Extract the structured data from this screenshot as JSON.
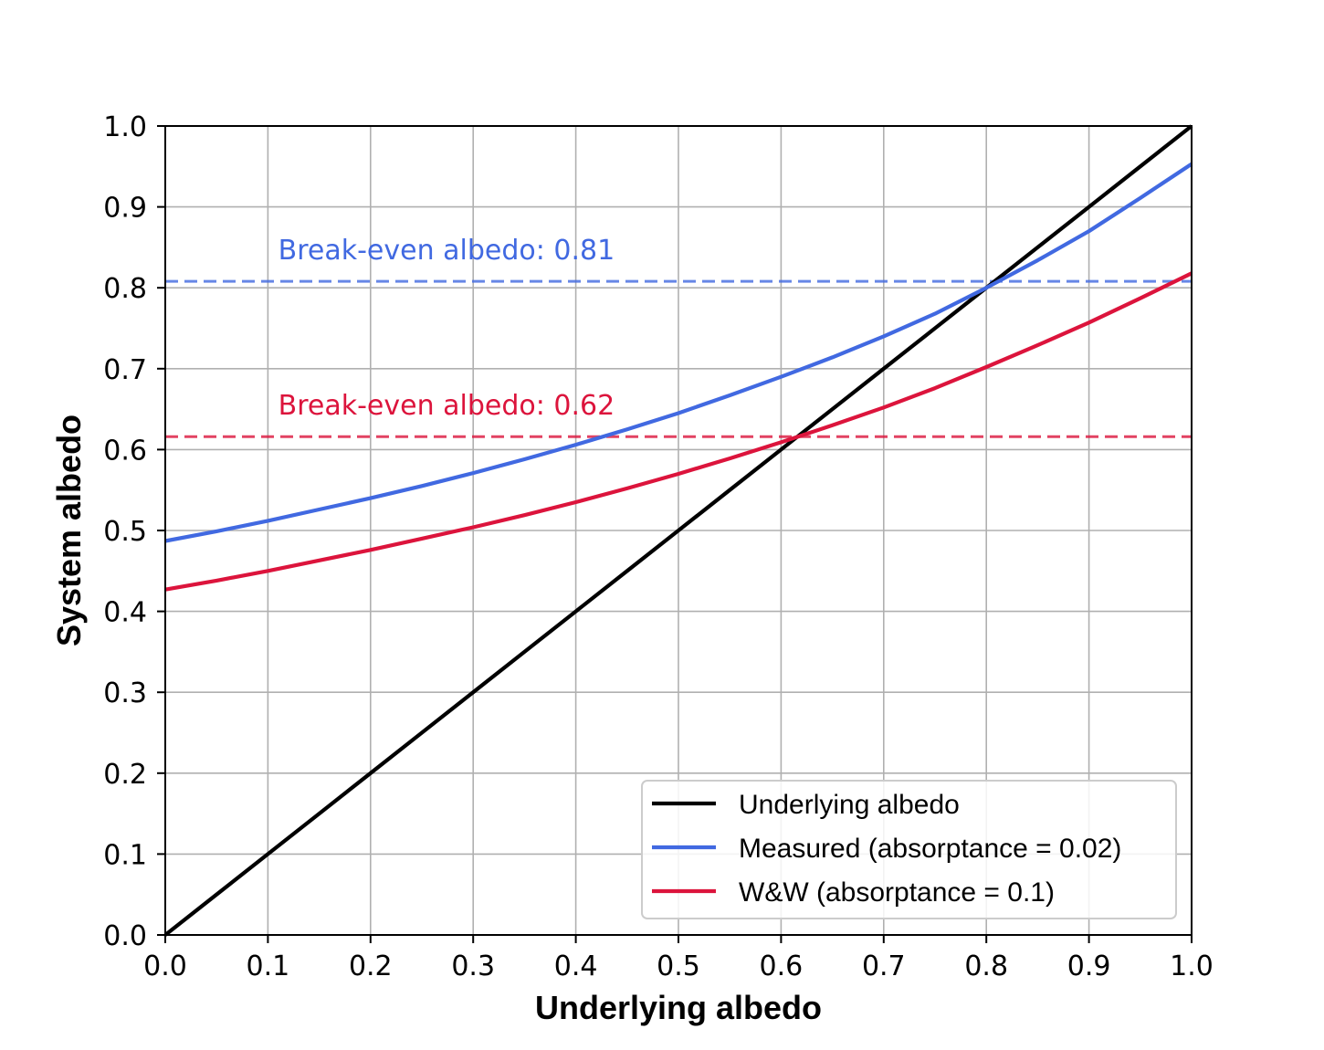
{
  "chart_data": {
    "type": "line",
    "xlabel": "Underlying albedo",
    "ylabel": "System albedo",
    "xlim": [
      0,
      1
    ],
    "ylim": [
      0,
      1
    ],
    "xticks": [
      "0.0",
      "0.1",
      "0.2",
      "0.3",
      "0.4",
      "0.5",
      "0.6",
      "0.7",
      "0.8",
      "0.9",
      "1.0"
    ],
    "yticks": [
      "0.0",
      "0.1",
      "0.2",
      "0.3",
      "0.4",
      "0.5",
      "0.6",
      "0.7",
      "0.8",
      "0.9",
      "1.0"
    ],
    "grid": true,
    "legend_position": "lower-right",
    "x": [
      0.0,
      0.05,
      0.1,
      0.15,
      0.2,
      0.25,
      0.3,
      0.35,
      0.4,
      0.45,
      0.5,
      0.55,
      0.6,
      0.65,
      0.7,
      0.75,
      0.8,
      0.85,
      0.9,
      0.95,
      1.0
    ],
    "series": [
      {
        "name": "Underlying albedo",
        "color": "#000000",
        "values": [
          0.0,
          0.05,
          0.1,
          0.15,
          0.2,
          0.25,
          0.3,
          0.35,
          0.4,
          0.45,
          0.5,
          0.55,
          0.6,
          0.65,
          0.7,
          0.75,
          0.8,
          0.85,
          0.9,
          0.95,
          1.0
        ]
      },
      {
        "name": "Measured (absorptance = 0.02)",
        "color": "#4169e1",
        "values": [
          0.487,
          0.499,
          0.512,
          0.526,
          0.54,
          0.555,
          0.571,
          0.588,
          0.606,
          0.625,
          0.645,
          0.667,
          0.69,
          0.714,
          0.74,
          0.768,
          0.8,
          0.834,
          0.87,
          0.911,
          0.953
        ]
      },
      {
        "name": "W&W (absorptance = 0.1)",
        "color": "#dc143c",
        "values": [
          0.427,
          0.438,
          0.45,
          0.463,
          0.476,
          0.49,
          0.504,
          0.519,
          0.535,
          0.552,
          0.57,
          0.589,
          0.609,
          0.63,
          0.652,
          0.676,
          0.702,
          0.729,
          0.757,
          0.787,
          0.818
        ]
      }
    ],
    "reference_lines": [
      {
        "y": 0.808,
        "color": "#4169e1",
        "label": "Break-even albedo: 0.81",
        "label_x": 0.11
      },
      {
        "y": 0.616,
        "color": "#dc143c",
        "label": "Break-even albedo: 0.62",
        "label_x": 0.11
      }
    ]
  }
}
